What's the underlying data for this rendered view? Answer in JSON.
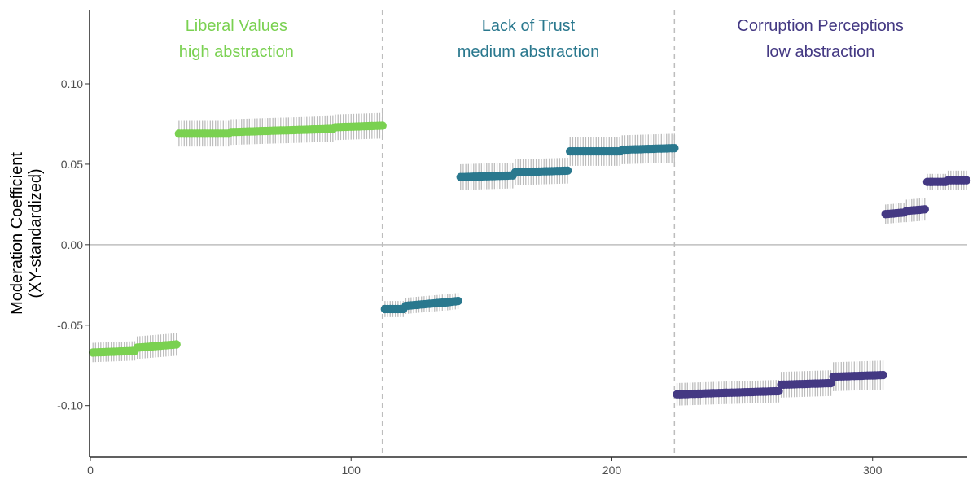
{
  "chart_data": {
    "type": "scatter",
    "title": "",
    "ylabel_line1": "Moderation Coefficient",
    "ylabel_line2": "(XY-standardized)",
    "xlabel": "",
    "xlim": [
      0,
      336
    ],
    "ylim": [
      -0.132,
      0.146
    ],
    "x_ticks": [
      0,
      100,
      200,
      300
    ],
    "y_ticks": [
      -0.1,
      -0.05,
      0.0,
      0.05,
      0.1
    ],
    "y_tick_labels": [
      "-0.10",
      "-0.05",
      "0.00",
      "0.05",
      "0.10"
    ],
    "reference_line_y": 0,
    "group_separators_x": [
      112,
      224
    ],
    "ci_color": "#bdbdbd",
    "groups": [
      {
        "label_line1": "Liberal Values",
        "label_line2": "high abstraction",
        "color": "#7ad151",
        "label_x": 56,
        "segments": [
          {
            "x_start": 1,
            "x_end": 17,
            "y_start": -0.067,
            "y_end": -0.066,
            "ci": 0.006
          },
          {
            "x_start": 18,
            "x_end": 33,
            "y_start": -0.064,
            "y_end": -0.062,
            "ci": 0.007
          },
          {
            "x_start": 34,
            "x_end": 53,
            "y_start": 0.069,
            "y_end": 0.069,
            "ci": 0.008
          },
          {
            "x_start": 54,
            "x_end": 73,
            "y_start": 0.07,
            "y_end": 0.071,
            "ci": 0.008
          },
          {
            "x_start": 74,
            "x_end": 93,
            "y_start": 0.071,
            "y_end": 0.072,
            "ci": 0.008
          },
          {
            "x_start": 94,
            "x_end": 112,
            "y_start": 0.073,
            "y_end": 0.074,
            "ci": 0.008
          }
        ]
      },
      {
        "label_line1": "Lack of Trust",
        "label_line2": "medium abstraction",
        "color": "#2a788e",
        "label_x": 168,
        "segments": [
          {
            "x_start": 113,
            "x_end": 120,
            "y_start": -0.04,
            "y_end": -0.04,
            "ci": 0.005
          },
          {
            "x_start": 121,
            "x_end": 135,
            "y_start": -0.038,
            "y_end": -0.036,
            "ci": 0.005
          },
          {
            "x_start": 136,
            "x_end": 141,
            "y_start": -0.036,
            "y_end": -0.035,
            "ci": 0.005
          },
          {
            "x_start": 142,
            "x_end": 162,
            "y_start": 0.042,
            "y_end": 0.043,
            "ci": 0.008
          },
          {
            "x_start": 163,
            "x_end": 183,
            "y_start": 0.045,
            "y_end": 0.046,
            "ci": 0.008
          },
          {
            "x_start": 184,
            "x_end": 203,
            "y_start": 0.058,
            "y_end": 0.058,
            "ci": 0.009
          },
          {
            "x_start": 204,
            "x_end": 224,
            "y_start": 0.059,
            "y_end": 0.06,
            "ci": 0.009
          }
        ]
      },
      {
        "label_line1": "Corruption Perceptions",
        "label_line2": "low abstraction",
        "color": "#443983",
        "label_x": 280,
        "segments": [
          {
            "x_start": 225,
            "x_end": 244,
            "y_start": -0.093,
            "y_end": -0.092,
            "ci": 0.007
          },
          {
            "x_start": 245,
            "x_end": 264,
            "y_start": -0.092,
            "y_end": -0.091,
            "ci": 0.007
          },
          {
            "x_start": 265,
            "x_end": 284,
            "y_start": -0.087,
            "y_end": -0.086,
            "ci": 0.008
          },
          {
            "x_start": 285,
            "x_end": 304,
            "y_start": -0.082,
            "y_end": -0.081,
            "ci": 0.009
          },
          {
            "x_start": 305,
            "x_end": 312,
            "y_start": 0.019,
            "y_end": 0.02,
            "ci": 0.006
          },
          {
            "x_start": 313,
            "x_end": 320,
            "y_start": 0.021,
            "y_end": 0.022,
            "ci": 0.007
          },
          {
            "x_start": 321,
            "x_end": 328,
            "y_start": 0.039,
            "y_end": 0.039,
            "ci": 0.005
          },
          {
            "x_start": 329,
            "x_end": 336,
            "y_start": 0.04,
            "y_end": 0.04,
            "ci": 0.006
          }
        ]
      }
    ]
  }
}
